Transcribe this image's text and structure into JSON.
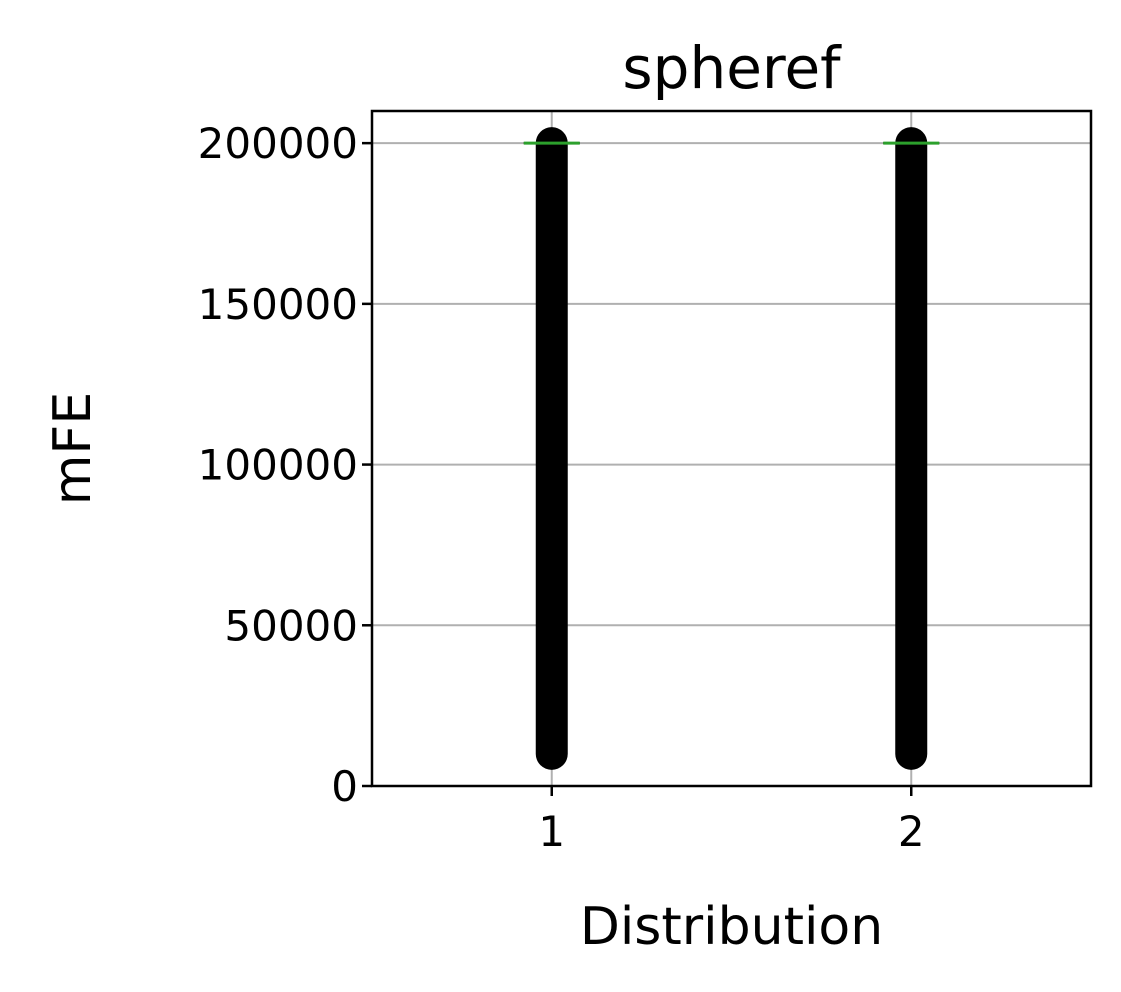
{
  "chart_data": {
    "type": "box",
    "title": "spheref",
    "xlabel": "Distribution",
    "ylabel": "mFE",
    "categories": [
      "1",
      "2"
    ],
    "xlim": [
      0.5,
      2.5
    ],
    "ylim": [
      0,
      210000
    ],
    "yticks": [
      0,
      50000,
      100000,
      150000,
      200000
    ],
    "ytick_labels": [
      "0",
      "50000",
      "100000",
      "150000",
      "200000"
    ],
    "grid": true,
    "series": [
      {
        "values_range": [
          10000,
          200000
        ],
        "median": 200000,
        "q1": 200000,
        "q3": 200000,
        "whisker_low": 200000,
        "whisker_high": 200000,
        "outliers_range": [
          10000,
          200000
        ]
      },
      {
        "values_range": [
          10000,
          200000
        ],
        "median": 200000,
        "q1": 200000,
        "q3": 200000,
        "whisker_low": 200000,
        "whisker_high": 200000,
        "outliers_range": [
          10000,
          200000
        ]
      }
    ],
    "colors": {
      "median": "#2ca02c",
      "outliers": "#000000",
      "grid": "#b0b0b0",
      "axes": "#000000"
    }
  }
}
